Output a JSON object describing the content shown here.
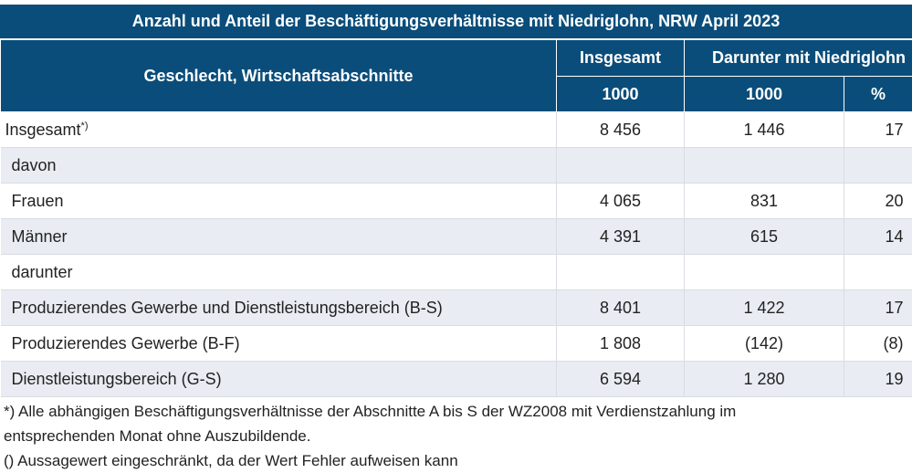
{
  "title": "Anzahl und Anteil der Beschäftigungsverhältnisse mit Niedriglohn, NRW April 2023",
  "header": {
    "row_label": "Geschlecht, Wirtschaftsabschnitte",
    "col_total": "Insgesamt",
    "col_low": "Darunter mit Niedriglohn",
    "unit_total": "1000",
    "unit_low": "1000",
    "unit_pct": "%"
  },
  "rows": [
    {
      "label": "Insgesamt",
      "sup": "*)",
      "total": "8 456",
      "low": "1 446",
      "pct": "17"
    },
    {
      "label": "davon",
      "total": "",
      "low": "",
      "pct": ""
    },
    {
      "label": "Frauen",
      "total": "4 065",
      "low": "831",
      "pct": "20"
    },
    {
      "label": "Männer",
      "total": "4 391",
      "low": "615",
      "pct": "14"
    },
    {
      "label": "darunter",
      "total": "",
      "low": "",
      "pct": ""
    },
    {
      "label": "Produzierendes Gewerbe und Dienstleistungsbereich (B-S)",
      "total": "8 401",
      "low": "1 422",
      "pct": "17"
    },
    {
      "label": "Produzierendes Gewerbe (B-F)",
      "total": "1 808",
      "low": "(142)",
      "pct": "(8)"
    },
    {
      "label": "Dienstleistungsbereich (G-S)",
      "total": "6 594",
      "low": "1 280",
      "pct": "19"
    }
  ],
  "footnotes": [
    "*) Alle abhängigen Beschäftigungsverhältnisse der Abschnitte A bis S der WZ2008 mit Verdienstzahlung im",
    "entsprechenden Monat ohne Auszubildende.",
    "() Aussagewert eingeschränkt, da der Wert Fehler aufweisen kann"
  ]
}
